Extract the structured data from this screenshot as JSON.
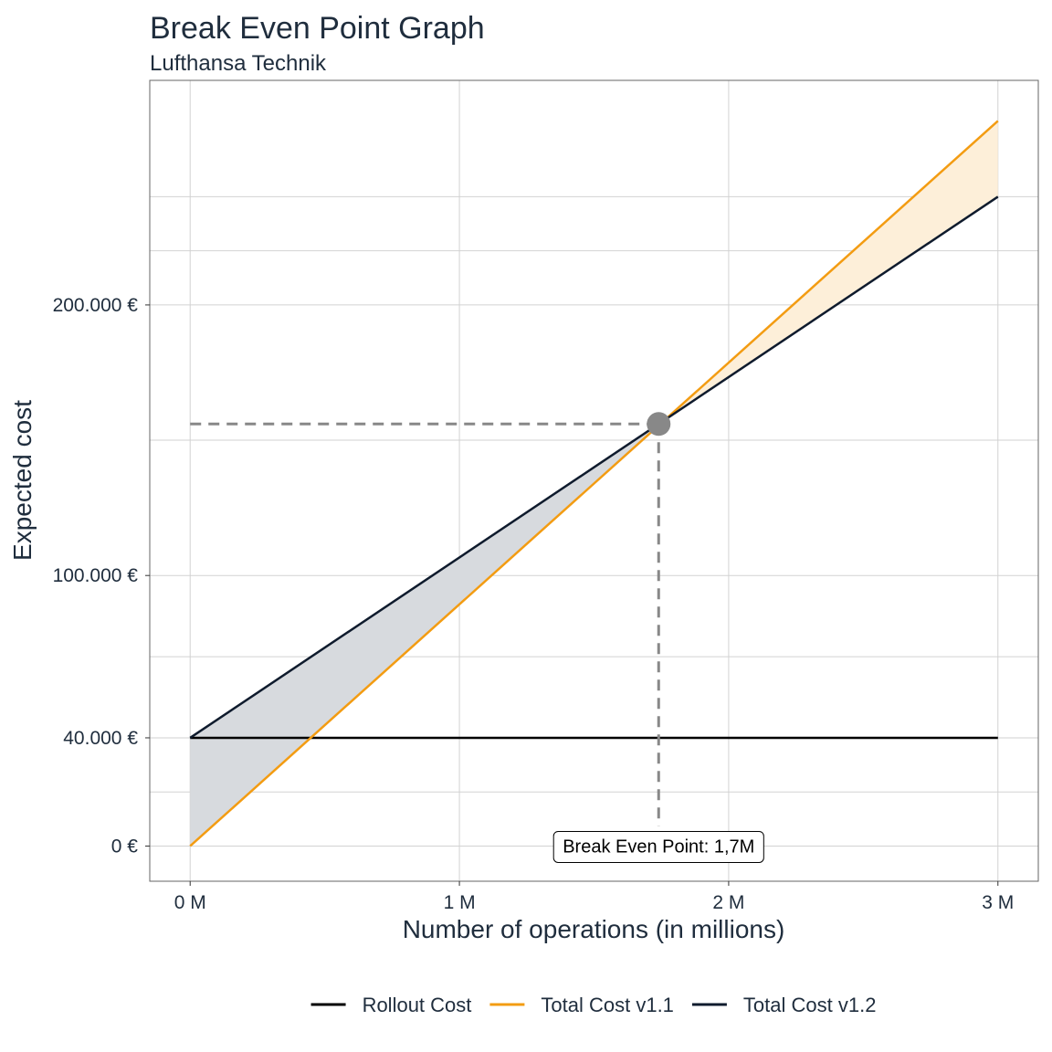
{
  "chart_data": {
    "type": "line",
    "title": "Break Even Point Graph",
    "subtitle": "Lufthansa Technik",
    "xlabel": "Number of operations (in millions)",
    "ylabel": "Expected cost",
    "xlim": [
      -0.15,
      3.15
    ],
    "ylim": [
      -13000,
      283000
    ],
    "x_ticks": [
      0,
      1,
      2,
      3
    ],
    "x_tick_labels": [
      "0 M",
      "1 M",
      "2 M",
      "3 M"
    ],
    "y_ticks": [
      0,
      40000,
      100000,
      200000
    ],
    "y_tick_labels": [
      "0 €",
      "40.000 €",
      "100.000 €",
      "200.000 €"
    ],
    "minor_y_gridlines": [
      20000,
      70000,
      150000,
      220000,
      240000
    ],
    "grid": true,
    "legend_position": "bottom",
    "series": [
      {
        "name": "Rollout Cost",
        "color": "#000000",
        "x": [
          0,
          3
        ],
        "y": [
          40000,
          40000
        ]
      },
      {
        "name": "Total Cost v1.1",
        "color": "#f39c12",
        "x": [
          0,
          3
        ],
        "y": [
          0,
          268000
        ]
      },
      {
        "name": "Total Cost v1.2",
        "color": "#0f1b2d",
        "x": [
          0,
          3
        ],
        "y": [
          40000,
          240000
        ]
      }
    ],
    "shading": [
      {
        "between": [
          "Total Cost v1.2",
          "Total Cost v1.1"
        ],
        "x_range": [
          0,
          1.74
        ],
        "color": "#d7dade"
      },
      {
        "between": [
          "Total Cost v1.1",
          "Total Cost v1.2"
        ],
        "x_range": [
          1.74,
          3
        ],
        "color": "#fdefd9"
      }
    ],
    "break_even": {
      "x": 1.74,
      "y": 156000,
      "label": "Break Even Point: 1,7M",
      "color": "#888888"
    }
  }
}
